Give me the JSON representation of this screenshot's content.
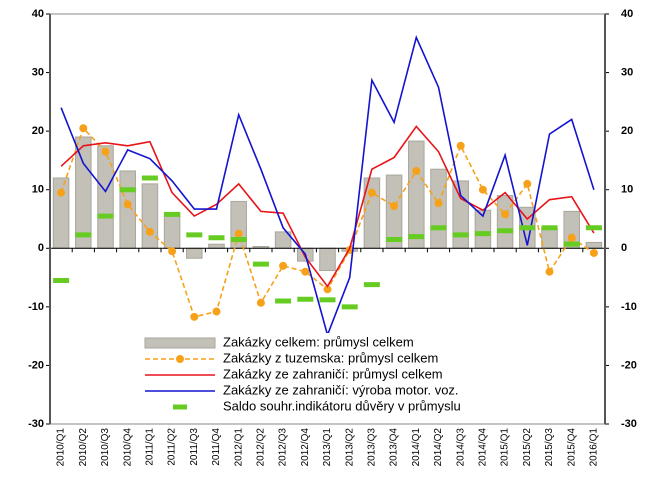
{
  "chart_data": {
    "type": "combo",
    "categories": [
      "2010/Q1",
      "2010/Q2",
      "2010/Q3",
      "2010/Q4",
      "2011/Q1",
      "2011/Q2",
      "2011/Q3",
      "2011/Q4",
      "2012/Q1",
      "2012/Q2",
      "2012/Q3",
      "2012/Q4",
      "2013/Q1",
      "2013/Q2",
      "2013/Q3",
      "2013/Q4",
      "2014/Q1",
      "2014/Q2",
      "2014/Q3",
      "2014/Q4",
      "2015/Q1",
      "2015/Q2",
      "2015/Q3",
      "2015/Q4",
      "2016/Q1"
    ],
    "series": [
      {
        "name": "Zakázky celkem: průmysl celkem",
        "type": "bar",
        "color": "#c3c0b8",
        "values": [
          12,
          19,
          17.5,
          13.2,
          11,
          6,
          -1.7,
          0.7,
          8,
          0.3,
          2.8,
          -2.2,
          -3.8,
          -0.5,
          12,
          12.5,
          18.3,
          13.5,
          11.5,
          6.5,
          9,
          7,
          3.5,
          6.3,
          1
        ]
      },
      {
        "name": "Zakázky z tuzemska: průmysl celkem",
        "type": "line",
        "dashed": true,
        "marker": "circle",
        "color": "#f7a11a",
        "values": [
          9.5,
          20.5,
          16.5,
          7.5,
          2.8,
          -0.5,
          -11.7,
          -10.8,
          2.5,
          -9.3,
          -3,
          -4,
          -7,
          -0.3,
          9.5,
          7.2,
          13.2,
          7.7,
          17.5,
          10,
          5.8,
          11,
          -4,
          1.8,
          -0.8
        ]
      },
      {
        "name": "Zakázky ze zahraničí:  průmysl celkem",
        "type": "line",
        "color": "#e8141a",
        "values": [
          14,
          17.5,
          18,
          17.5,
          18.2,
          9.5,
          5.5,
          7.5,
          11,
          6.3,
          6,
          -1.5,
          -6.5,
          0,
          13.5,
          15.5,
          20.8,
          16.5,
          8.5,
          6.5,
          9.5,
          5,
          8.3,
          8.8,
          2.6
        ]
      },
      {
        "name": "Zakázky ze zahraničí:  výroba motor.  voz.",
        "type": "line",
        "color": "#1414d0",
        "values": [
          24,
          14.5,
          9.7,
          16.8,
          15.3,
          11.5,
          6.7,
          6.7,
          22.8,
          13.5,
          3.5,
          -1,
          -14.8,
          -5,
          28.7,
          21.5,
          36,
          27.5,
          9,
          5.5,
          15.9,
          0.5,
          19.5,
          22,
          10
        ]
      },
      {
        "name": "Saldo souhr.indikátoru důvěry v průmyslu",
        "type": "dash",
        "color": "#66cc22",
        "axis": "y2",
        "values": [
          -5.5,
          2.3,
          5.5,
          10,
          12,
          5.8,
          2.3,
          1.8,
          1.5,
          -2.7,
          -9,
          -8.7,
          -8.8,
          -10,
          -6.2,
          1.5,
          2,
          3.5,
          2.3,
          2.5,
          3,
          3.5,
          3.5,
          0.7,
          3.5
        ]
      }
    ],
    "ylim": [
      -30,
      40
    ],
    "yticks": [
      -30,
      -20,
      -10,
      0,
      10,
      20,
      30,
      40
    ],
    "y2lim": [
      -30,
      40
    ],
    "y2ticks": [
      -30,
      -20,
      -10,
      0,
      10,
      20,
      30,
      40
    ]
  }
}
